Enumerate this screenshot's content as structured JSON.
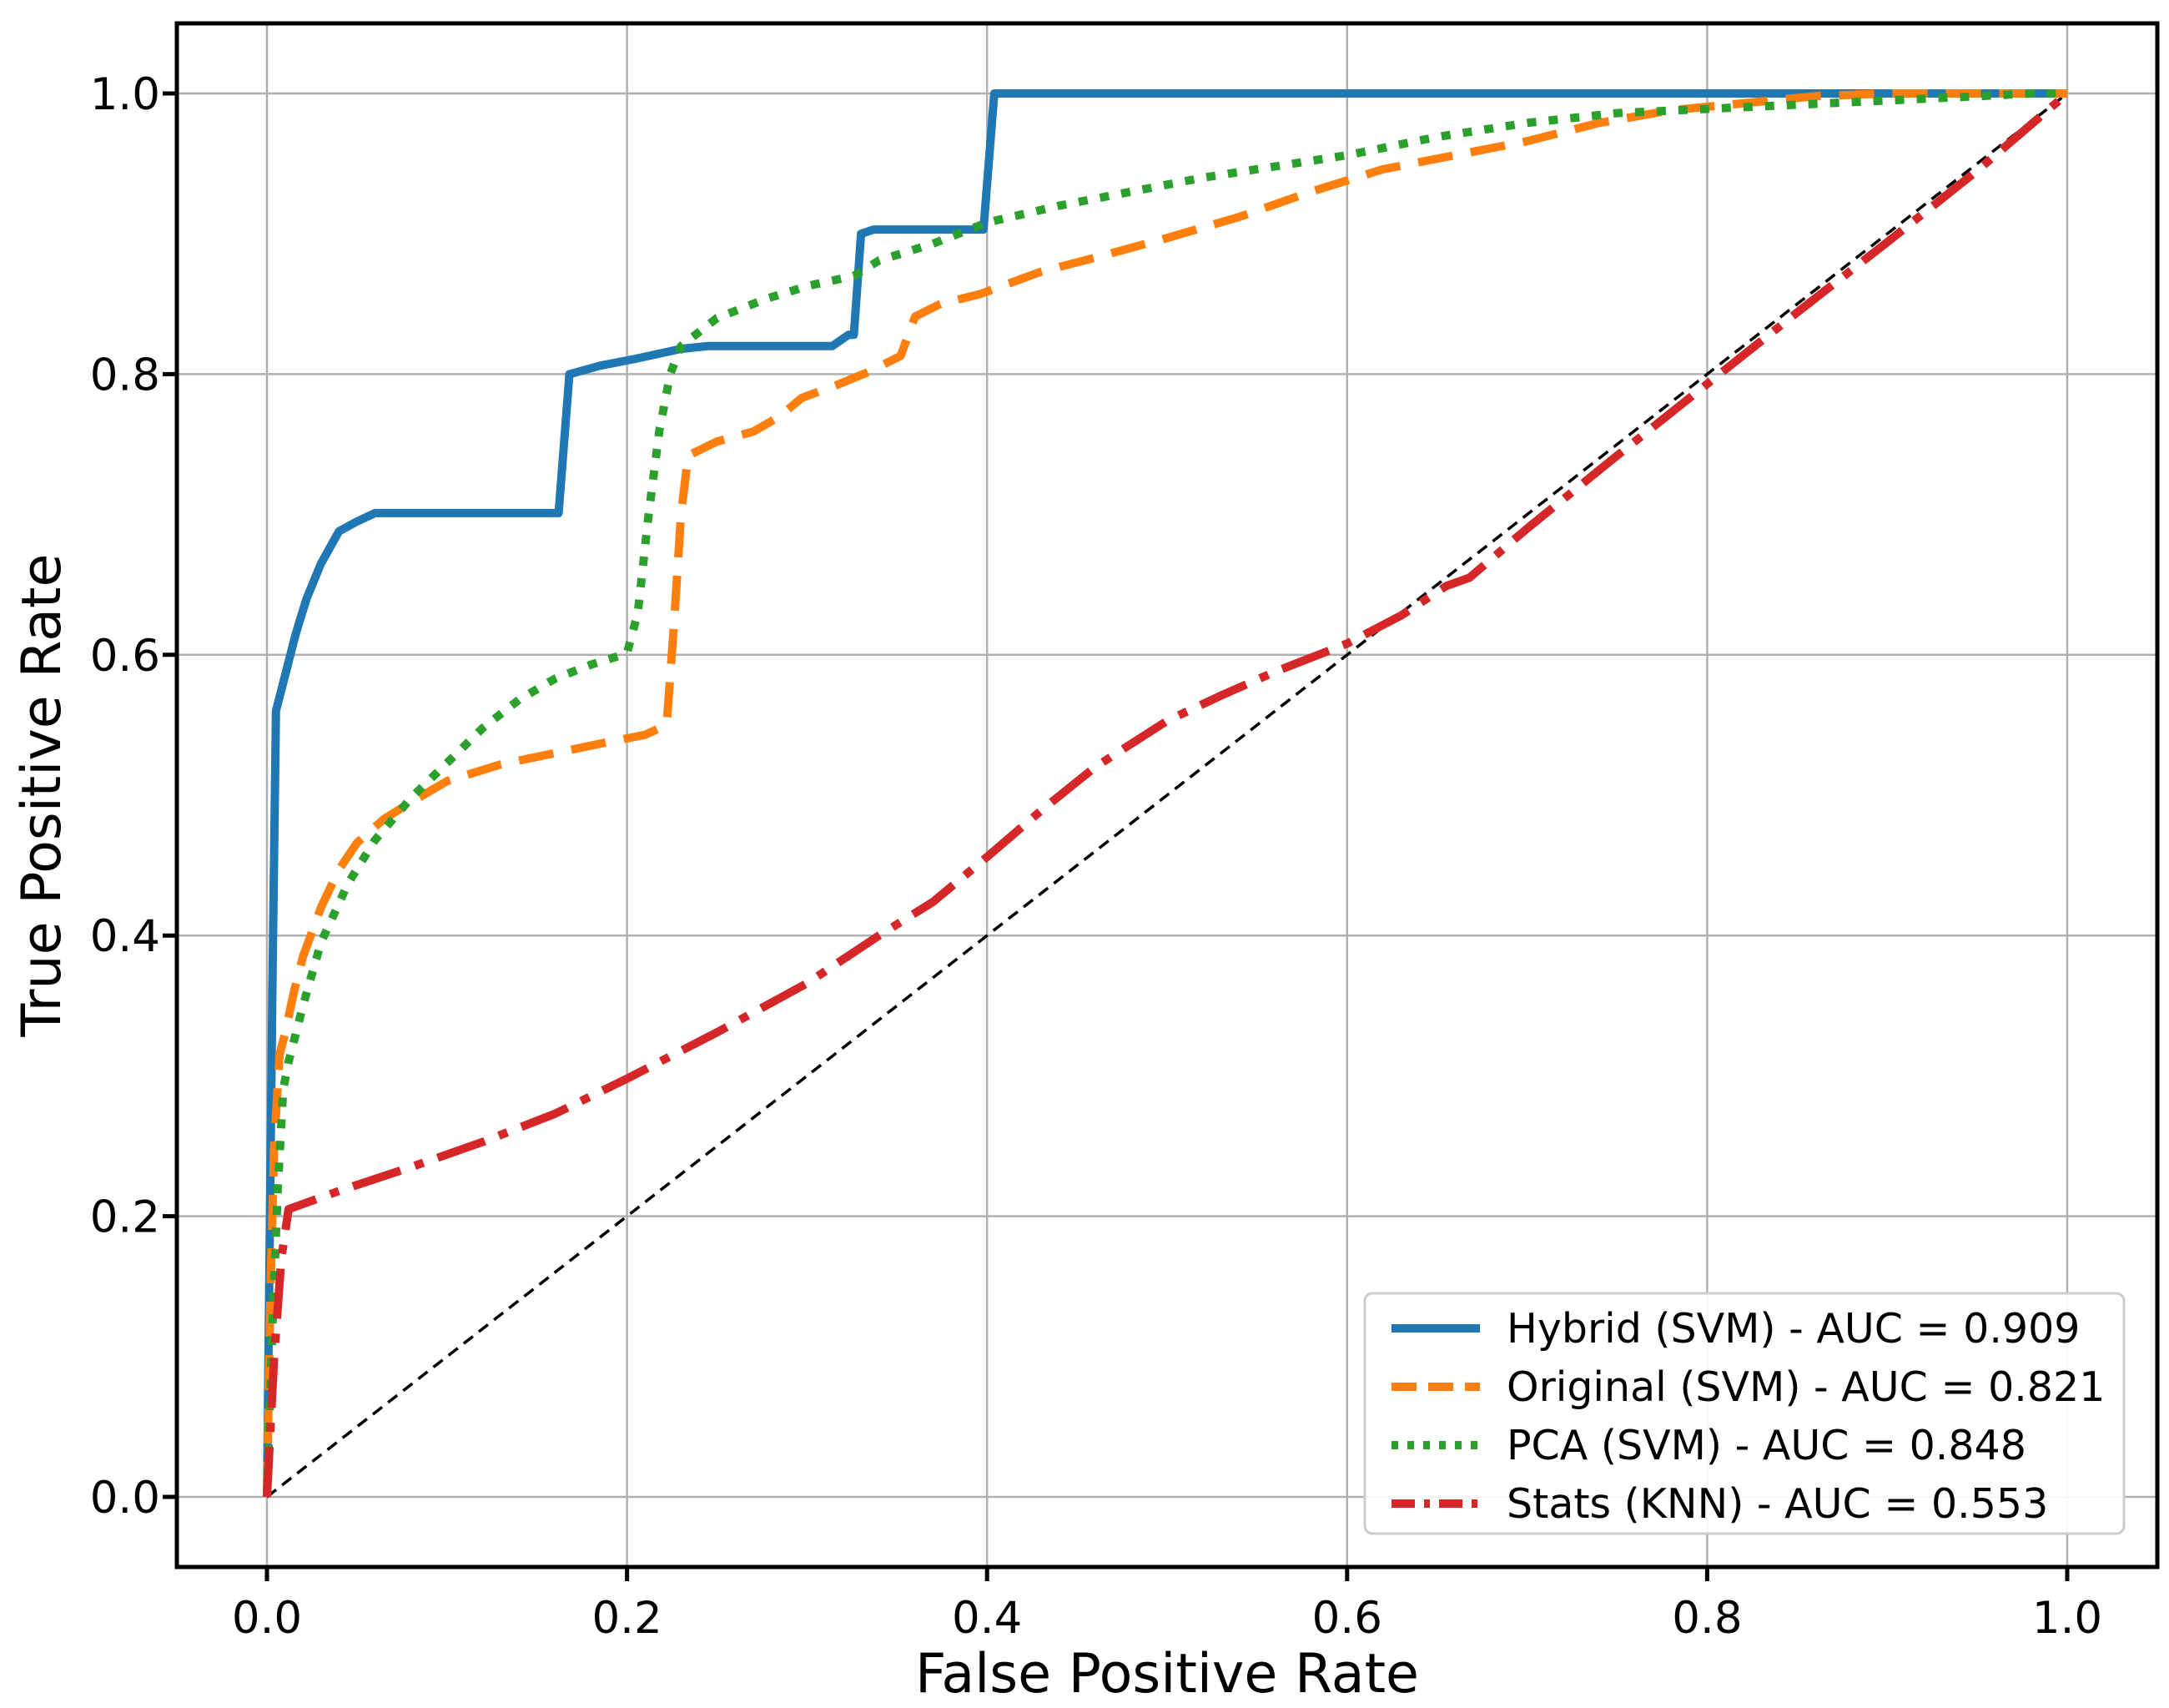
{
  "figure": {
    "background": "#ffffff",
    "plot_background": "#ffffff",
    "grid_color": "#b0b0b0",
    "spine_color": "#000000",
    "legend_border_color": "#cccccc"
  },
  "chart_data": {
    "type": "line",
    "title": "",
    "xlabel": "False Positive Rate",
    "ylabel": "True Positive Rate",
    "xlim": [
      -0.05,
      1.05
    ],
    "ylim": [
      -0.05,
      1.05
    ],
    "grid": true,
    "legend_position": "lower right",
    "x_tick_labels": [
      "0.0",
      "0.2",
      "0.4",
      "0.6",
      "0.8",
      "1.0"
    ],
    "y_tick_labels": [
      "0.0",
      "0.2",
      "0.4",
      "0.6",
      "0.8",
      "1.0"
    ],
    "x_tick_values": [
      0.0,
      0.2,
      0.4,
      0.6,
      0.8,
      1.0
    ],
    "y_tick_values": [
      0.0,
      0.2,
      0.4,
      0.6,
      0.8,
      1.0
    ],
    "series": [
      {
        "id": "hybrid-svm",
        "label": "Hybrid (SVM) - AUC = 0.909",
        "auc": 0.909,
        "color": "#1f77b4",
        "linestyle": "solid",
        "points": [
          [
            0,
            0
          ],
          [
            0.003,
            0.36
          ],
          [
            0.005,
            0.56
          ],
          [
            0.01,
            0.585
          ],
          [
            0.016,
            0.615
          ],
          [
            0.022,
            0.64
          ],
          [
            0.03,
            0.665
          ],
          [
            0.04,
            0.688
          ],
          [
            0.05,
            0.695
          ],
          [
            0.06,
            0.701
          ],
          [
            0.162,
            0.701
          ],
          [
            0.168,
            0.8
          ],
          [
            0.185,
            0.806
          ],
          [
            0.205,
            0.811
          ],
          [
            0.23,
            0.818
          ],
          [
            0.245,
            0.82
          ],
          [
            0.314,
            0.82
          ],
          [
            0.323,
            0.828
          ],
          [
            0.326,
            0.828
          ],
          [
            0.33,
            0.9
          ],
          [
            0.337,
            0.903
          ],
          [
            0.398,
            0.903
          ],
          [
            0.404,
            1
          ],
          [
            1,
            1
          ]
        ]
      },
      {
        "id": "original-svm",
        "label": "Original (SVM) - AUC = 0.821",
        "auc": 0.821,
        "color": "#ff7f0e",
        "linestyle": "dashed",
        "points": [
          [
            0,
            0
          ],
          [
            0.002,
            0.15
          ],
          [
            0.004,
            0.25
          ],
          [
            0.007,
            0.315
          ],
          [
            0.01,
            0.33
          ],
          [
            0.015,
            0.36
          ],
          [
            0.02,
            0.385
          ],
          [
            0.03,
            0.42
          ],
          [
            0.04,
            0.447
          ],
          [
            0.05,
            0.466
          ],
          [
            0.065,
            0.483
          ],
          [
            0.08,
            0.495
          ],
          [
            0.1,
            0.51
          ],
          [
            0.13,
            0.522
          ],
          [
            0.16,
            0.53
          ],
          [
            0.19,
            0.538
          ],
          [
            0.21,
            0.543
          ],
          [
            0.222,
            0.55
          ],
          [
            0.226,
            0.62
          ],
          [
            0.23,
            0.7
          ],
          [
            0.234,
            0.742
          ],
          [
            0.25,
            0.752
          ],
          [
            0.27,
            0.759
          ],
          [
            0.285,
            0.77
          ],
          [
            0.297,
            0.783
          ],
          [
            0.316,
            0.792
          ],
          [
            0.335,
            0.802
          ],
          [
            0.352,
            0.813
          ],
          [
            0.36,
            0.841
          ],
          [
            0.374,
            0.85
          ],
          [
            0.396,
            0.857
          ],
          [
            0.43,
            0.873
          ],
          [
            0.46,
            0.883
          ],
          [
            0.5,
            0.897
          ],
          [
            0.54,
            0.912
          ],
          [
            0.58,
            0.93
          ],
          [
            0.62,
            0.946
          ],
          [
            0.66,
            0.956
          ],
          [
            0.7,
            0.966
          ],
          [
            0.74,
            0.979
          ],
          [
            0.78,
            0.988
          ],
          [
            0.82,
            0.993
          ],
          [
            0.86,
            0.998
          ],
          [
            0.9,
            1
          ],
          [
            1,
            1
          ]
        ]
      },
      {
        "id": "pca-svm",
        "label": "PCA (SVM) - AUC = 0.848",
        "auc": 0.848,
        "color": "#2ca02c",
        "linestyle": "dotted",
        "points": [
          [
            0,
            0
          ],
          [
            0.003,
            0.12
          ],
          [
            0.006,
            0.22
          ],
          [
            0.009,
            0.29
          ],
          [
            0.012,
            0.31
          ],
          [
            0.02,
            0.35
          ],
          [
            0.03,
            0.395
          ],
          [
            0.045,
            0.437
          ],
          [
            0.06,
            0.468
          ],
          [
            0.08,
            0.498
          ],
          [
            0.1,
            0.523
          ],
          [
            0.12,
            0.548
          ],
          [
            0.14,
            0.568
          ],
          [
            0.16,
            0.583
          ],
          [
            0.18,
            0.593
          ],
          [
            0.2,
            0.601
          ],
          [
            0.206,
            0.63
          ],
          [
            0.212,
            0.7
          ],
          [
            0.218,
            0.76
          ],
          [
            0.224,
            0.8
          ],
          [
            0.23,
            0.82
          ],
          [
            0.25,
            0.84
          ],
          [
            0.278,
            0.854
          ],
          [
            0.301,
            0.863
          ],
          [
            0.326,
            0.87
          ],
          [
            0.34,
            0.881
          ],
          [
            0.37,
            0.893
          ],
          [
            0.4,
            0.908
          ],
          [
            0.44,
            0.92
          ],
          [
            0.48,
            0.93
          ],
          [
            0.52,
            0.94
          ],
          [
            0.56,
            0.948
          ],
          [
            0.6,
            0.956
          ],
          [
            0.65,
            0.969
          ],
          [
            0.7,
            0.979
          ],
          [
            0.75,
            0.986
          ],
          [
            0.8,
            0.989
          ],
          [
            0.85,
            0.992
          ],
          [
            0.9,
            0.995
          ],
          [
            0.95,
            0.998
          ],
          [
            0.98,
            1
          ],
          [
            1,
            1
          ]
        ]
      },
      {
        "id": "stats-knn",
        "label": "Stats (KNN) - AUC = 0.553",
        "auc": 0.553,
        "color": "#d62728",
        "linestyle": "dashdot",
        "points": [
          [
            0,
            0
          ],
          [
            0.004,
            0.1
          ],
          [
            0.008,
            0.17
          ],
          [
            0.012,
            0.205
          ],
          [
            0.04,
            0.218
          ],
          [
            0.08,
            0.235
          ],
          [
            0.12,
            0.253
          ],
          [
            0.16,
            0.273
          ],
          [
            0.2,
            0.298
          ],
          [
            0.25,
            0.331
          ],
          [
            0.3,
            0.366
          ],
          [
            0.34,
            0.4
          ],
          [
            0.37,
            0.424
          ],
          [
            0.4,
            0.456
          ],
          [
            0.43,
            0.489
          ],
          [
            0.46,
            0.52
          ],
          [
            0.5,
            0.553
          ],
          [
            0.53,
            0.571
          ],
          [
            0.56,
            0.588
          ],
          [
            0.6,
            0.608
          ],
          [
            0.63,
            0.628
          ],
          [
            0.655,
            0.649
          ],
          [
            0.668,
            0.655
          ],
          [
            0.7,
            0.69
          ],
          [
            0.75,
            0.742
          ],
          [
            0.8,
            0.793
          ],
          [
            0.85,
            0.844
          ],
          [
            0.9,
            0.894
          ],
          [
            0.95,
            0.945
          ],
          [
            1,
            1
          ]
        ]
      }
    ],
    "reference_line": {
      "id": "chance-diagonal",
      "color": "#000000",
      "linestyle": "dashed",
      "points": [
        [
          0,
          0
        ],
        [
          1,
          1
        ]
      ]
    }
  }
}
